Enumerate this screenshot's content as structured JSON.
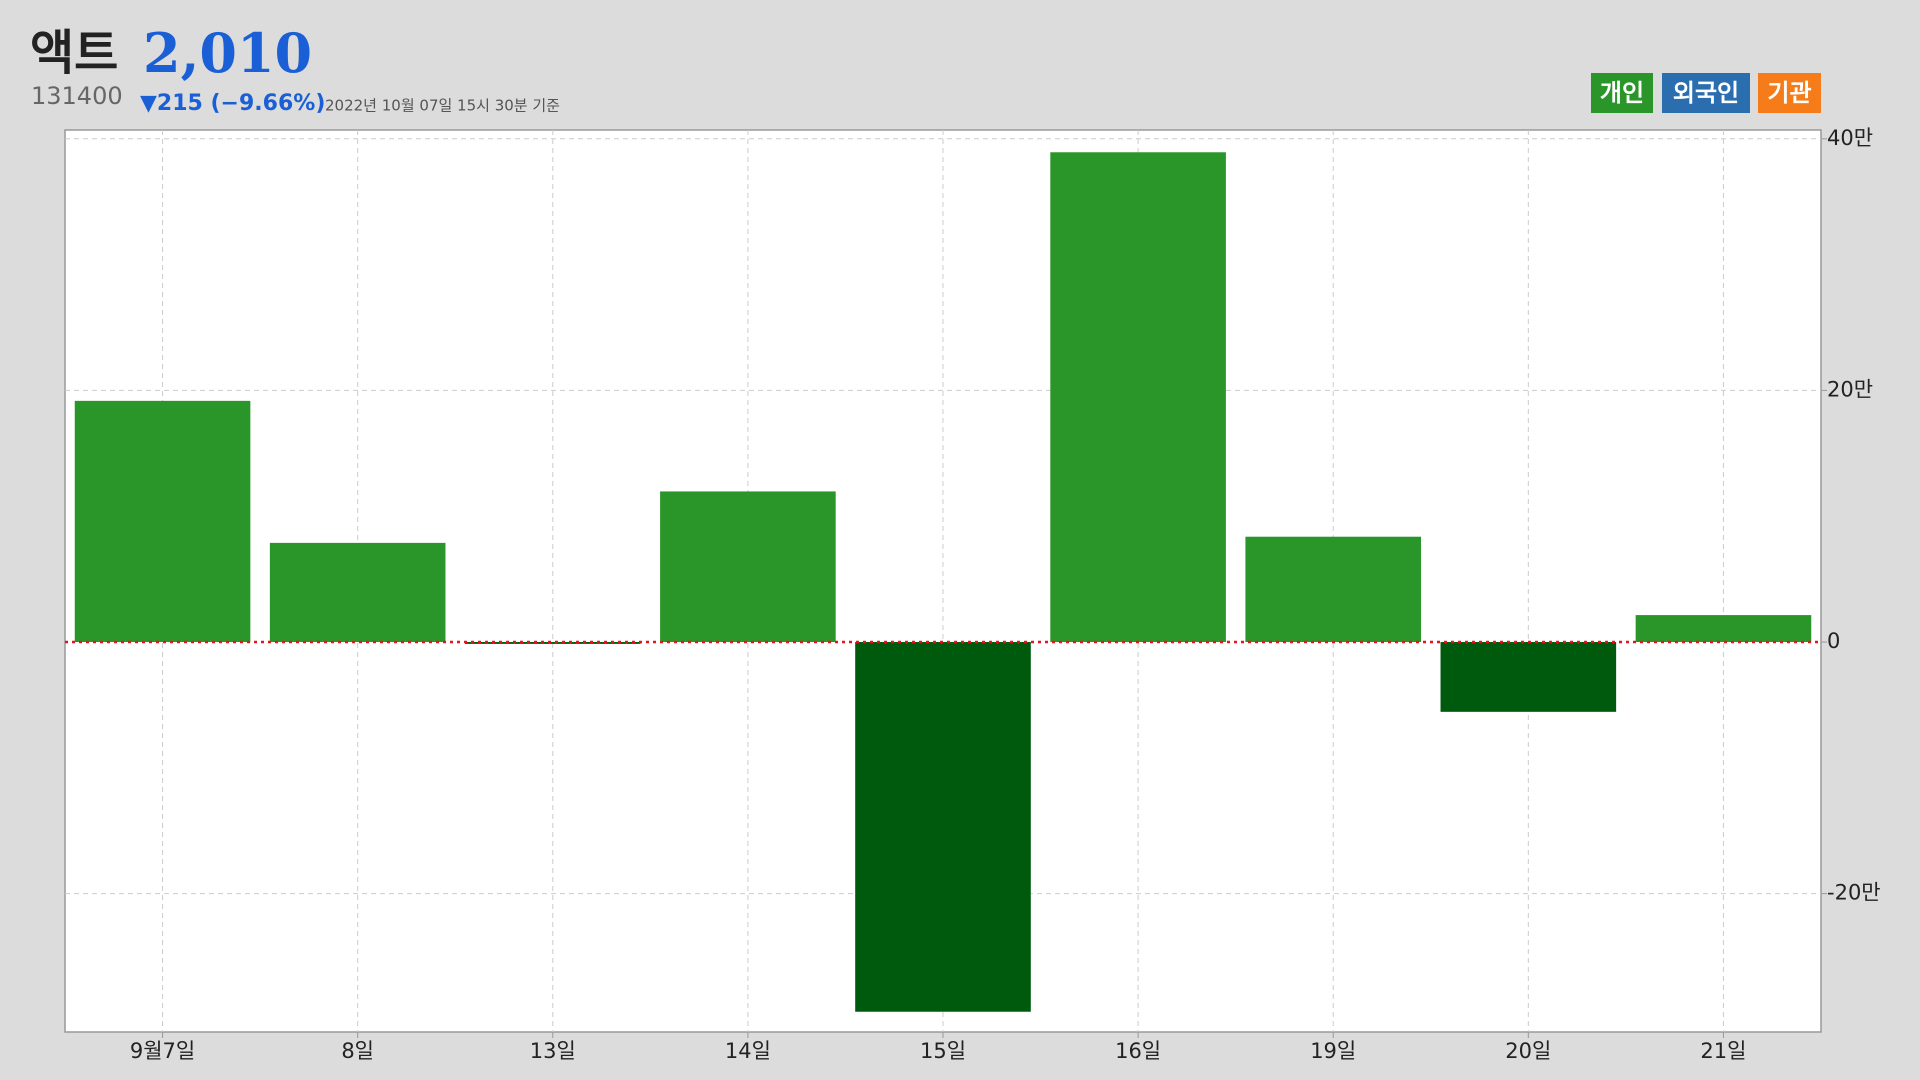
{
  "chart_data": {
    "type": "bar",
    "title": "액트",
    "price": "2,010",
    "code": "131400",
    "change": "▼215 (−9.66%)",
    "timestamp": "2022년 10월 07일 15시 30분 기준",
    "legend": [
      {
        "name": "개인",
        "color": "#2a962a"
      },
      {
        "name": "외국인",
        "color": "#2a6eb0"
      },
      {
        "name": "기관",
        "color": "#f57c18"
      }
    ],
    "categories": [
      "9월7일",
      "8일",
      "13일",
      "14일",
      "15일",
      "16일",
      "19일",
      "20일",
      "21일"
    ],
    "values": [
      191700,
      78800,
      -1500,
      119700,
      -293900,
      389300,
      83700,
      -55500,
      21400
    ],
    "positive_color": "#2a962a",
    "negative_color": "#005a0d",
    "ylim": [
      -310000,
      407000
    ],
    "yticks": [
      {
        "value": -200000,
        "label": "-20만"
      },
      0,
      {
        "value": 200000,
        "label": "20만"
      },
      {
        "value": 400000,
        "label": "40만"
      }
    ],
    "grid": true,
    "zero_line_color": "#e8141c"
  }
}
